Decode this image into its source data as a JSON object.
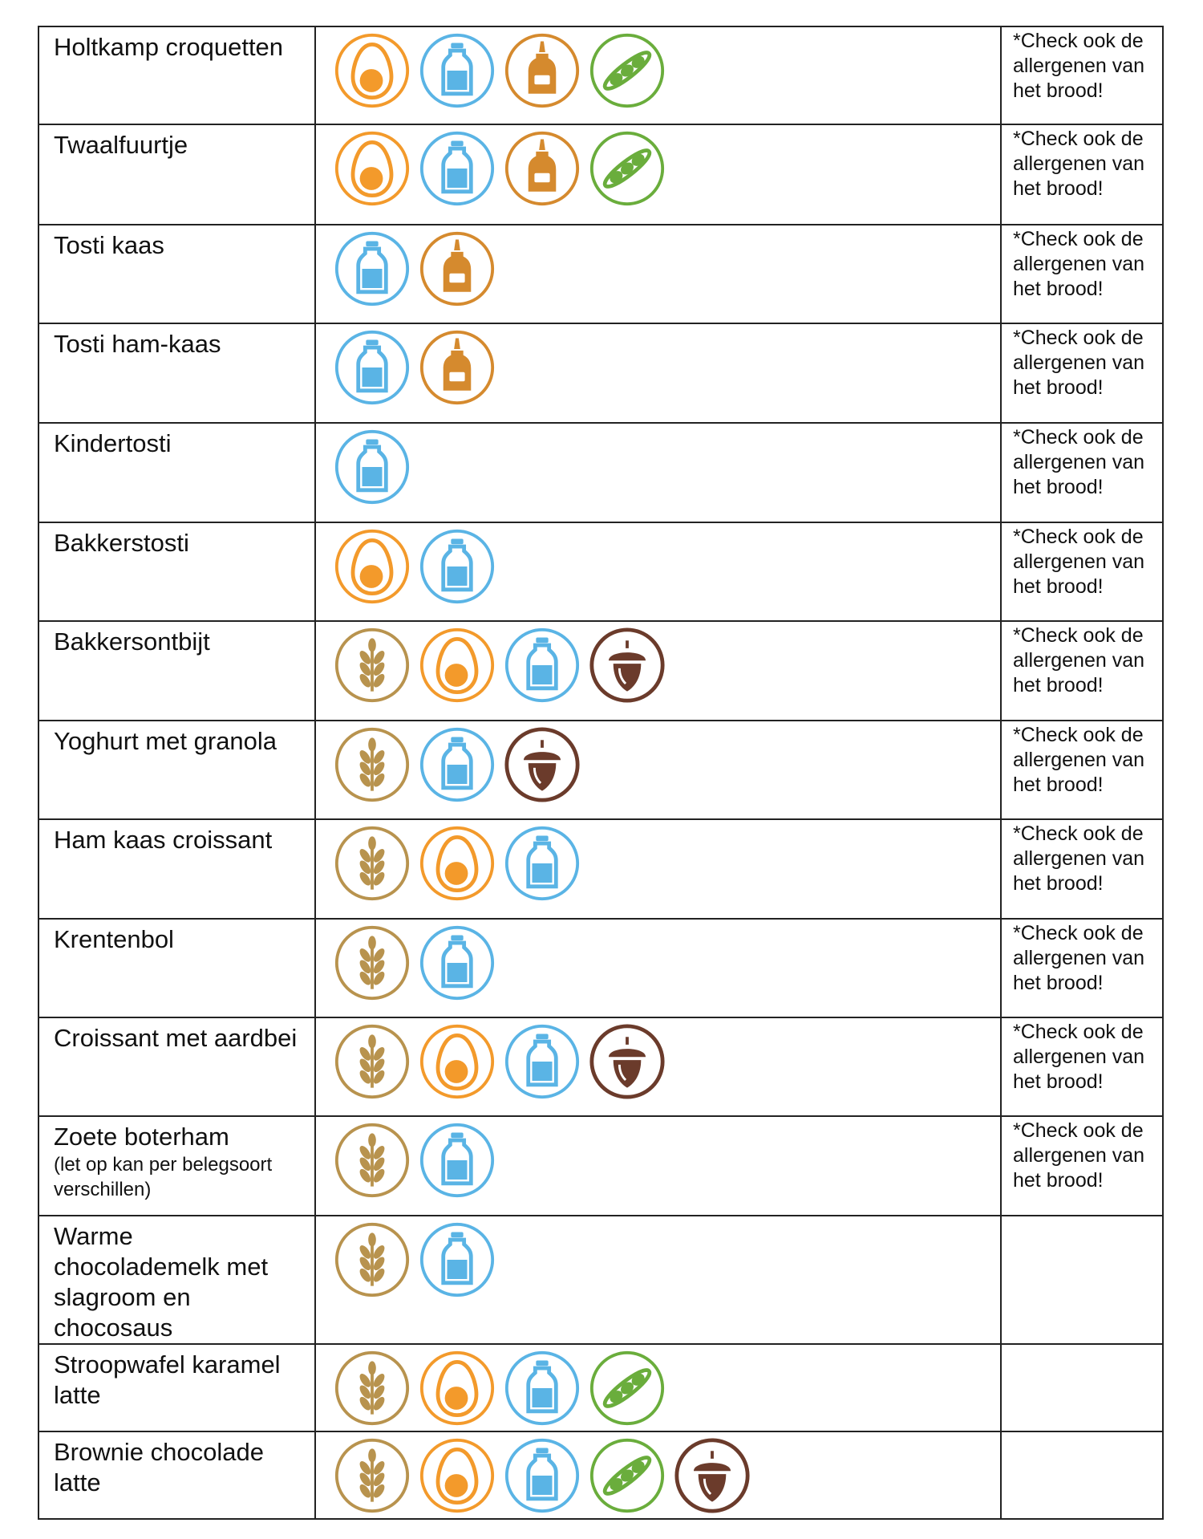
{
  "table": {
    "rows": [
      {
        "name": "Holtkamp croquetten",
        "note": "*Check ook de allergenen van het brood!"
      },
      {
        "name": "Twaalfuurtje",
        "note": "*Check ook de allergenen van het brood!"
      },
      {
        "name": "Tosti kaas",
        "note": "*Check ook de allergenen van het brood!"
      },
      {
        "name": "Tosti ham-kaas",
        "note": "*Check ook de allergenen van het brood!"
      },
      {
        "name": "Kindertosti",
        "note": "*Check ook de allergenen van het brood!"
      },
      {
        "name": "Bakkerstosti",
        "note": "*Check ook de allergenen van het brood!"
      },
      {
        "name": "Bakkersontbijt",
        "note": "*Check ook de allergenen van het brood!"
      },
      {
        "name": "Yoghurt met granola",
        "note": "*Check ook de allergenen van het brood!"
      },
      {
        "name": "Ham kaas croissant",
        "note": "*Check ook de allergenen van het brood!"
      },
      {
        "name": "Krentenbol",
        "note": "*Check ook de allergenen van het brood!"
      },
      {
        "name": "Croissant met aardbei",
        "note": "*Check ook de allergenen van het brood!"
      },
      {
        "name": "Zoete boterham",
        "sub": "(let op kan per belegsoort verschillen)",
        "note": "*Check ook de allergenen van het brood!"
      },
      {
        "name": "Warme chocolademelk met slagroom en chocosaus"
      },
      {
        "name": "Stroopwafel karamel latte"
      },
      {
        "name": "Brownie chocolade latte"
      }
    ]
  }
}
